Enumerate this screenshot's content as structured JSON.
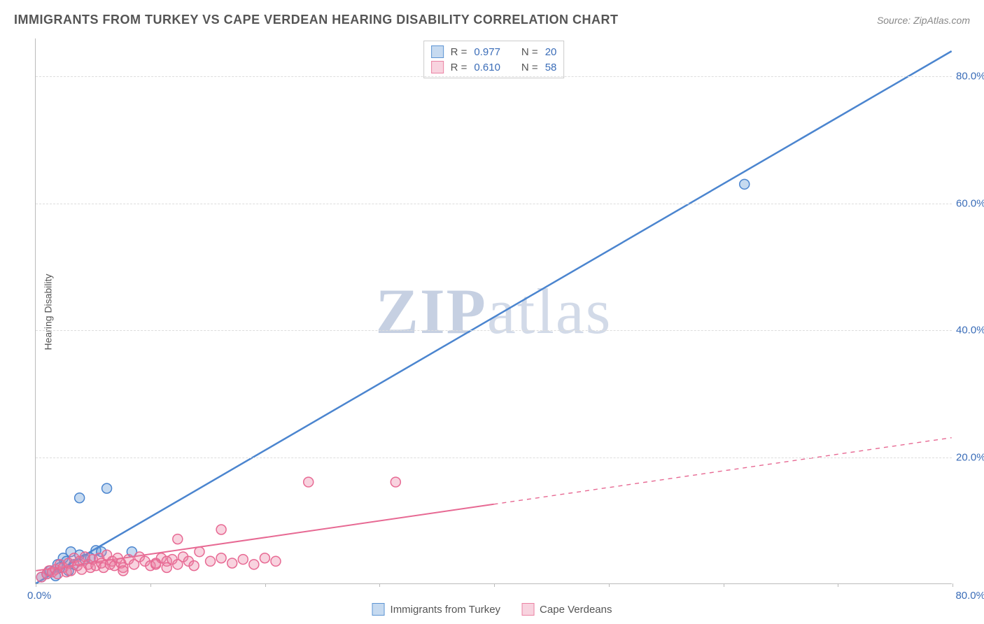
{
  "title": "IMMIGRANTS FROM TURKEY VS CAPE VERDEAN HEARING DISABILITY CORRELATION CHART",
  "source": "Source: ZipAtlas.com",
  "watermark_bold": "ZIP",
  "watermark_light": "atlas",
  "y_axis_label": "Hearing Disability",
  "x_origin": "0.0%",
  "x_max": "80.0%",
  "chart": {
    "type": "scatter",
    "xlim": [
      0,
      84
    ],
    "ylim": [
      0,
      86
    ],
    "y_ticks": [
      {
        "v": 20,
        "label": "20.0%"
      },
      {
        "v": 40,
        "label": "40.0%"
      },
      {
        "v": 60,
        "label": "60.0%"
      },
      {
        "v": 80,
        "label": "80.0%"
      }
    ],
    "x_ticks_pct": [
      0,
      12.5,
      25,
      37.5,
      50,
      62.5,
      75,
      87.5,
      100
    ],
    "colors": {
      "blue_stroke": "#4b85cf",
      "blue_fill": "rgba(93,148,211,0.35)",
      "pink_stroke": "#e76993",
      "pink_fill": "rgba(235,130,163,0.35)",
      "grid": "#dddddd",
      "axis": "#bbbbbb",
      "tick_text": "#3b6db8",
      "background": "#ffffff"
    },
    "marker_radius": 7,
    "marker_stroke_width": 1.5,
    "line_width_blue": 2.5,
    "line_width_pink": 2,
    "series": [
      {
        "key": "blue",
        "name": "Immigrants from Turkey",
        "R": "0.977",
        "N": "20",
        "trend": {
          "x1": 0,
          "y1": 0,
          "x2": 84,
          "y2": 84,
          "dash_from_x": null
        },
        "points": [
          [
            0.5,
            1
          ],
          [
            1,
            1.5
          ],
          [
            1.3,
            2
          ],
          [
            1.8,
            1.2
          ],
          [
            2,
            3
          ],
          [
            2.2,
            2.5
          ],
          [
            2.5,
            4
          ],
          [
            2.8,
            3.5
          ],
          [
            3,
            2
          ],
          [
            3.2,
            5
          ],
          [
            3.5,
            3
          ],
          [
            4,
            4.5
          ],
          [
            4.5,
            3.8
          ],
          [
            5,
            4
          ],
          [
            5.5,
            5.2
          ],
          [
            6,
            5
          ],
          [
            6.5,
            15
          ],
          [
            4,
            13.5
          ],
          [
            8.8,
            5
          ],
          [
            65,
            63
          ]
        ]
      },
      {
        "key": "pink",
        "name": "Cape Verdeans",
        "R": "0.610",
        "N": "58",
        "trend": {
          "x1": 0,
          "y1": 2,
          "x2": 84,
          "y2": 23,
          "dash_from_x": 42
        },
        "points": [
          [
            0.5,
            1
          ],
          [
            1,
            1.5
          ],
          [
            1.2,
            2
          ],
          [
            1.5,
            1.8
          ],
          [
            1.8,
            2.2
          ],
          [
            2,
            1.5
          ],
          [
            2.2,
            3
          ],
          [
            2.5,
            2.5
          ],
          [
            2.8,
            1.8
          ],
          [
            3,
            3.2
          ],
          [
            3.2,
            2
          ],
          [
            3.5,
            4
          ],
          [
            3.8,
            2.8
          ],
          [
            4,
            3.5
          ],
          [
            4.2,
            2.2
          ],
          [
            4.5,
            4.2
          ],
          [
            4.8,
            3
          ],
          [
            5,
            2.5
          ],
          [
            5.2,
            3.8
          ],
          [
            5.5,
            2.8
          ],
          [
            5.8,
            4
          ],
          [
            6,
            3.2
          ],
          [
            6.2,
            2.5
          ],
          [
            6.5,
            4.5
          ],
          [
            6.8,
            3
          ],
          [
            7,
            3.5
          ],
          [
            7.2,
            2.8
          ],
          [
            7.5,
            4
          ],
          [
            7.8,
            3.2
          ],
          [
            8,
            2.5
          ],
          [
            8.5,
            3.8
          ],
          [
            9,
            3
          ],
          [
            9.5,
            4.2
          ],
          [
            10,
            3.5
          ],
          [
            10.5,
            2.8
          ],
          [
            11,
            3.2
          ],
          [
            11.5,
            4
          ],
          [
            12,
            3.5
          ],
          [
            12.5,
            3.8
          ],
          [
            13,
            3
          ],
          [
            13.5,
            4.2
          ],
          [
            14,
            3.5
          ],
          [
            14.5,
            2.8
          ],
          [
            15,
            5
          ],
          [
            16,
            3.5
          ],
          [
            17,
            4
          ],
          [
            18,
            3.2
          ],
          [
            19,
            3.8
          ],
          [
            20,
            3
          ],
          [
            13,
            7
          ],
          [
            17,
            8.5
          ],
          [
            21,
            4
          ],
          [
            22,
            3.5
          ],
          [
            25,
            16
          ],
          [
            33,
            16
          ],
          [
            11,
            3
          ],
          [
            12,
            2.5
          ],
          [
            8,
            2
          ]
        ]
      }
    ]
  },
  "stat_legend": {
    "r_label": "R =",
    "n_label": "N ="
  },
  "bottom_legend": [
    {
      "color": "blue",
      "label": "Immigrants from Turkey"
    },
    {
      "color": "pink",
      "label": "Cape Verdeans"
    }
  ]
}
